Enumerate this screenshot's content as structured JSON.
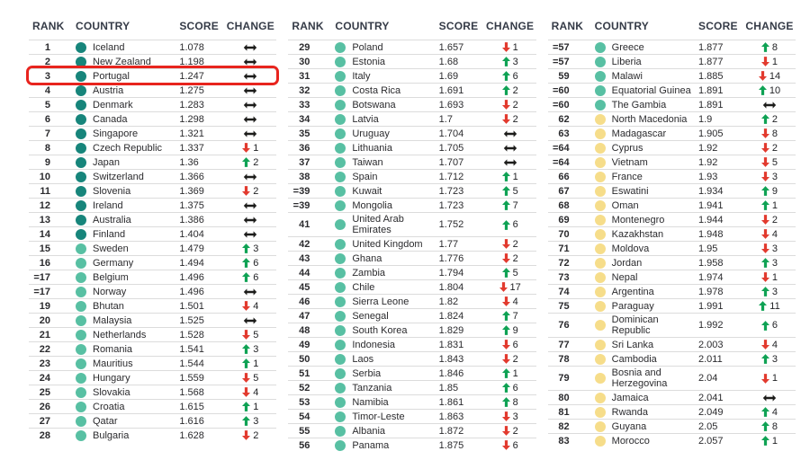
{
  "table": {
    "columns": [
      "RANK",
      "COUNTRY",
      "SCORE",
      "CHANGE"
    ],
    "highlight": {
      "rank": "3",
      "country": "Portugal",
      "box_color": "#e8241e"
    },
    "colors": {
      "tier_teal": "#17857b",
      "tier_green": "#58c0a3",
      "tier_yellow": "#f6dd8a",
      "up_arrow": "#0fa254",
      "down_arrow": "#e23a2e",
      "steady_arrow": "#1d1d1b",
      "header_text": "#353b47",
      "body_text": "#2b2b2e",
      "divider": "#dcdcdc"
    },
    "icons": {
      "up-arrow-icon": "solid up arrow (score rank improved)",
      "down-arrow-icon": "solid down arrow (score rank worsened)",
      "steady-arrow-icon": "double-headed horizontal arrow (no change)"
    },
    "groups": [
      {
        "rows": [
          {
            "rank": "1",
            "country": "Iceland",
            "score": "1.078",
            "dir": "steady",
            "amount": "",
            "tier": "teal"
          },
          {
            "rank": "2",
            "country": "New Zealand",
            "score": "1.198",
            "dir": "steady",
            "amount": "",
            "tier": "teal"
          },
          {
            "rank": "3",
            "country": "Portugal",
            "score": "1.247",
            "dir": "steady",
            "amount": "",
            "tier": "teal"
          },
          {
            "rank": "4",
            "country": "Austria",
            "score": "1.275",
            "dir": "steady",
            "amount": "",
            "tier": "teal"
          },
          {
            "rank": "5",
            "country": "Denmark",
            "score": "1.283",
            "dir": "steady",
            "amount": "",
            "tier": "teal"
          },
          {
            "rank": "6",
            "country": "Canada",
            "score": "1.298",
            "dir": "steady",
            "amount": "",
            "tier": "teal"
          },
          {
            "rank": "7",
            "country": "Singapore",
            "score": "1.321",
            "dir": "steady",
            "amount": "",
            "tier": "teal"
          },
          {
            "rank": "8",
            "country": "Czech Republic",
            "score": "1.337",
            "dir": "down",
            "amount": "1",
            "tier": "teal"
          },
          {
            "rank": "9",
            "country": "Japan",
            "score": "1.36",
            "dir": "up",
            "amount": "2",
            "tier": "teal"
          },
          {
            "rank": "10",
            "country": "Switzerland",
            "score": "1.366",
            "dir": "steady",
            "amount": "",
            "tier": "teal"
          },
          {
            "rank": "11",
            "country": "Slovenia",
            "score": "1.369",
            "dir": "down",
            "amount": "2",
            "tier": "teal"
          },
          {
            "rank": "12",
            "country": "Ireland",
            "score": "1.375",
            "dir": "steady",
            "amount": "",
            "tier": "teal"
          },
          {
            "rank": "13",
            "country": "Australia",
            "score": "1.386",
            "dir": "steady",
            "amount": "",
            "tier": "teal"
          },
          {
            "rank": "14",
            "country": "Finland",
            "score": "1.404",
            "dir": "steady",
            "amount": "",
            "tier": "teal"
          },
          {
            "rank": "15",
            "country": "Sweden",
            "score": "1.479",
            "dir": "up",
            "amount": "3",
            "tier": "green"
          },
          {
            "rank": "16",
            "country": "Germany",
            "score": "1.494",
            "dir": "up",
            "amount": "6",
            "tier": "green"
          },
          {
            "rank": "=17",
            "country": "Belgium",
            "score": "1.496",
            "dir": "up",
            "amount": "6",
            "tier": "green"
          },
          {
            "rank": "=17",
            "country": "Norway",
            "score": "1.496",
            "dir": "steady",
            "amount": "",
            "tier": "green"
          },
          {
            "rank": "19",
            "country": "Bhutan",
            "score": "1.501",
            "dir": "down",
            "amount": "4",
            "tier": "green"
          },
          {
            "rank": "20",
            "country": "Malaysia",
            "score": "1.525",
            "dir": "steady",
            "amount": "",
            "tier": "green"
          },
          {
            "rank": "21",
            "country": "Netherlands",
            "score": "1.528",
            "dir": "down",
            "amount": "5",
            "tier": "green"
          },
          {
            "rank": "22",
            "country": "Romania",
            "score": "1.541",
            "dir": "up",
            "amount": "3",
            "tier": "green"
          },
          {
            "rank": "23",
            "country": "Mauritius",
            "score": "1.544",
            "dir": "up",
            "amount": "1",
            "tier": "green"
          },
          {
            "rank": "24",
            "country": "Hungary",
            "score": "1.559",
            "dir": "down",
            "amount": "5",
            "tier": "green"
          },
          {
            "rank": "25",
            "country": "Slovakia",
            "score": "1.568",
            "dir": "down",
            "amount": "4",
            "tier": "green"
          },
          {
            "rank": "26",
            "country": "Croatia",
            "score": "1.615",
            "dir": "up",
            "amount": "1",
            "tier": "green"
          },
          {
            "rank": "27",
            "country": "Qatar",
            "score": "1.616",
            "dir": "up",
            "amount": "3",
            "tier": "green"
          },
          {
            "rank": "28",
            "country": "Bulgaria",
            "score": "1.628",
            "dir": "down",
            "amount": "2",
            "tier": "green"
          }
        ]
      },
      {
        "rows": [
          {
            "rank": "29",
            "country": "Poland",
            "score": "1.657",
            "dir": "down",
            "amount": "1",
            "tier": "green"
          },
          {
            "rank": "30",
            "country": "Estonia",
            "score": "1.68",
            "dir": "up",
            "amount": "3",
            "tier": "green"
          },
          {
            "rank": "31",
            "country": "Italy",
            "score": "1.69",
            "dir": "up",
            "amount": "6",
            "tier": "green"
          },
          {
            "rank": "32",
            "country": "Costa Rica",
            "score": "1.691",
            "dir": "up",
            "amount": "2",
            "tier": "green"
          },
          {
            "rank": "33",
            "country": "Botswana",
            "score": "1.693",
            "dir": "down",
            "amount": "2",
            "tier": "green"
          },
          {
            "rank": "34",
            "country": "Latvia",
            "score": "1.7",
            "dir": "down",
            "amount": "2",
            "tier": "green"
          },
          {
            "rank": "35",
            "country": "Uruguay",
            "score": "1.704",
            "dir": "steady",
            "amount": "",
            "tier": "green"
          },
          {
            "rank": "36",
            "country": "Lithuania",
            "score": "1.705",
            "dir": "steady",
            "amount": "",
            "tier": "green"
          },
          {
            "rank": "37",
            "country": "Taiwan",
            "score": "1.707",
            "dir": "steady",
            "amount": "",
            "tier": "green"
          },
          {
            "rank": "38",
            "country": "Spain",
            "score": "1.712",
            "dir": "up",
            "amount": "1",
            "tier": "green"
          },
          {
            "rank": "=39",
            "country": "Kuwait",
            "score": "1.723",
            "dir": "up",
            "amount": "5",
            "tier": "green"
          },
          {
            "rank": "=39",
            "country": "Mongolia",
            "score": "1.723",
            "dir": "up",
            "amount": "7",
            "tier": "green"
          },
          {
            "rank": "41",
            "country": "United Arab Emirates",
            "score": "1.752",
            "dir": "up",
            "amount": "6",
            "tier": "green"
          },
          {
            "rank": "42",
            "country": "United Kingdom",
            "score": "1.77",
            "dir": "down",
            "amount": "2",
            "tier": "green"
          },
          {
            "rank": "43",
            "country": "Ghana",
            "score": "1.776",
            "dir": "down",
            "amount": "2",
            "tier": "green"
          },
          {
            "rank": "44",
            "country": "Zambia",
            "score": "1.794",
            "dir": "up",
            "amount": "5",
            "tier": "green"
          },
          {
            "rank": "45",
            "country": "Chile",
            "score": "1.804",
            "dir": "down",
            "amount": "17",
            "tier": "green"
          },
          {
            "rank": "46",
            "country": "Sierra Leone",
            "score": "1.82",
            "dir": "down",
            "amount": "4",
            "tier": "green"
          },
          {
            "rank": "47",
            "country": "Senegal",
            "score": "1.824",
            "dir": "up",
            "amount": "7",
            "tier": "green"
          },
          {
            "rank": "48",
            "country": "South Korea",
            "score": "1.829",
            "dir": "up",
            "amount": "9",
            "tier": "green"
          },
          {
            "rank": "49",
            "country": "Indonesia",
            "score": "1.831",
            "dir": "down",
            "amount": "6",
            "tier": "green"
          },
          {
            "rank": "50",
            "country": "Laos",
            "score": "1.843",
            "dir": "down",
            "amount": "2",
            "tier": "green"
          },
          {
            "rank": "51",
            "country": "Serbia",
            "score": "1.846",
            "dir": "up",
            "amount": "1",
            "tier": "green"
          },
          {
            "rank": "52",
            "country": "Tanzania",
            "score": "1.85",
            "dir": "up",
            "amount": "6",
            "tier": "green"
          },
          {
            "rank": "53",
            "country": "Namibia",
            "score": "1.861",
            "dir": "up",
            "amount": "8",
            "tier": "green"
          },
          {
            "rank": "54",
            "country": "Timor-Leste",
            "score": "1.863",
            "dir": "down",
            "amount": "3",
            "tier": "green"
          },
          {
            "rank": "55",
            "country": "Albania",
            "score": "1.872",
            "dir": "down",
            "amount": "2",
            "tier": "green"
          },
          {
            "rank": "56",
            "country": "Panama",
            "score": "1.875",
            "dir": "down",
            "amount": "6",
            "tier": "green"
          }
        ]
      },
      {
        "rows": [
          {
            "rank": "=57",
            "country": "Greece",
            "score": "1.877",
            "dir": "up",
            "amount": "8",
            "tier": "green"
          },
          {
            "rank": "=57",
            "country": "Liberia",
            "score": "1.877",
            "dir": "down",
            "amount": "1",
            "tier": "green"
          },
          {
            "rank": "59",
            "country": "Malawi",
            "score": "1.885",
            "dir": "down",
            "amount": "14",
            "tier": "green"
          },
          {
            "rank": "=60",
            "country": "Equatorial Guinea",
            "score": "1.891",
            "dir": "up",
            "amount": "10",
            "tier": "green"
          },
          {
            "rank": "=60",
            "country": "The Gambia",
            "score": "1.891",
            "dir": "steady",
            "amount": "",
            "tier": "green"
          },
          {
            "rank": "62",
            "country": "North Macedonia",
            "score": "1.9",
            "dir": "up",
            "amount": "2",
            "tier": "yellow"
          },
          {
            "rank": "63",
            "country": "Madagascar",
            "score": "1.905",
            "dir": "down",
            "amount": "8",
            "tier": "yellow"
          },
          {
            "rank": "=64",
            "country": "Cyprus",
            "score": "1.92",
            "dir": "down",
            "amount": "2",
            "tier": "yellow"
          },
          {
            "rank": "=64",
            "country": "Vietnam",
            "score": "1.92",
            "dir": "down",
            "amount": "5",
            "tier": "yellow"
          },
          {
            "rank": "66",
            "country": "France",
            "score": "1.93",
            "dir": "down",
            "amount": "3",
            "tier": "yellow"
          },
          {
            "rank": "67",
            "country": "Eswatini",
            "score": "1.934",
            "dir": "up",
            "amount": "9",
            "tier": "yellow"
          },
          {
            "rank": "68",
            "country": "Oman",
            "score": "1.941",
            "dir": "up",
            "amount": "1",
            "tier": "yellow"
          },
          {
            "rank": "69",
            "country": "Montenegro",
            "score": "1.944",
            "dir": "down",
            "amount": "2",
            "tier": "yellow"
          },
          {
            "rank": "70",
            "country": "Kazakhstan",
            "score": "1.948",
            "dir": "down",
            "amount": "4",
            "tier": "yellow"
          },
          {
            "rank": "71",
            "country": "Moldova",
            "score": "1.95",
            "dir": "down",
            "amount": "3",
            "tier": "yellow"
          },
          {
            "rank": "72",
            "country": "Jordan",
            "score": "1.958",
            "dir": "up",
            "amount": "3",
            "tier": "yellow"
          },
          {
            "rank": "73",
            "country": "Nepal",
            "score": "1.974",
            "dir": "down",
            "amount": "1",
            "tier": "yellow"
          },
          {
            "rank": "74",
            "country": "Argentina",
            "score": "1.978",
            "dir": "up",
            "amount": "3",
            "tier": "yellow"
          },
          {
            "rank": "75",
            "country": "Paraguay",
            "score": "1.991",
            "dir": "up",
            "amount": "11",
            "tier": "yellow"
          },
          {
            "rank": "76",
            "country": "Dominican Republic",
            "score": "1.992",
            "dir": "up",
            "amount": "6",
            "tier": "yellow"
          },
          {
            "rank": "77",
            "country": "Sri Lanka",
            "score": "2.003",
            "dir": "down",
            "amount": "4",
            "tier": "yellow"
          },
          {
            "rank": "78",
            "country": "Cambodia",
            "score": "2.011",
            "dir": "up",
            "amount": "3",
            "tier": "yellow"
          },
          {
            "rank": "79",
            "country": "Bosnia and Herzegovina",
            "score": "2.04",
            "dir": "down",
            "amount": "1",
            "tier": "yellow"
          },
          {
            "rank": "80",
            "country": "Jamaica",
            "score": "2.041",
            "dir": "steady",
            "amount": "",
            "tier": "yellow"
          },
          {
            "rank": "81",
            "country": "Rwanda",
            "score": "2.049",
            "dir": "up",
            "amount": "4",
            "tier": "yellow"
          },
          {
            "rank": "82",
            "country": "Guyana",
            "score": "2.05",
            "dir": "up",
            "amount": "8",
            "tier": "yellow"
          },
          {
            "rank": "83",
            "country": "Morocco",
            "score": "2.057",
            "dir": "up",
            "amount": "1",
            "tier": "yellow"
          }
        ]
      }
    ]
  }
}
